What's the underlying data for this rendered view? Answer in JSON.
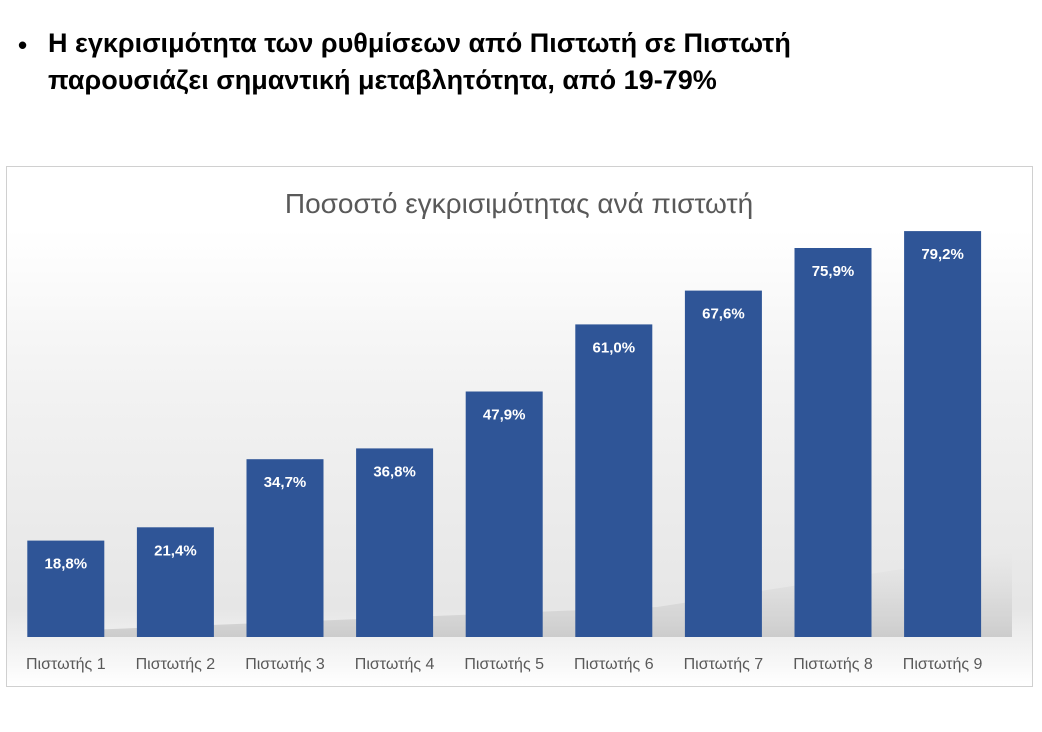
{
  "slide": {
    "bullet_symbol": "•",
    "bullet_text_line1": "Η εγκρισιμότητα των ρυθμίσεων από Πιστωτή σε Πιστωτή",
    "bullet_text_line2": "παρουσιάζει σημαντική μεταβλητότητα, από 19-79%"
  },
  "chart_data": {
    "type": "bar",
    "title": "Ποσοστό εγκρισιμότητας ανά πιστωτή",
    "categories": [
      "Πιστωτής 1",
      "Πιστωτής 2",
      "Πιστωτής 3",
      "Πιστωτής 4",
      "Πιστωτής 5",
      "Πιστωτής 6",
      "Πιστωτής 7",
      "Πιστωτής 8",
      "Πιστωτής 9"
    ],
    "values": [
      18.8,
      21.4,
      34.7,
      36.8,
      47.9,
      61.0,
      67.6,
      75.9,
      79.2
    ],
    "data_labels": [
      "18,8%",
      "21,4%",
      "34,7%",
      "36,8%",
      "47,9%",
      "61,0%",
      "67,6%",
      "75,9%",
      "79,2%"
    ],
    "ylim": [
      0,
      80
    ],
    "grid": false,
    "legend": "none",
    "bar_color": "#2f5597",
    "label_color": "#ffffff",
    "title_color": "#595959",
    "axis_label_color": "#595959"
  }
}
